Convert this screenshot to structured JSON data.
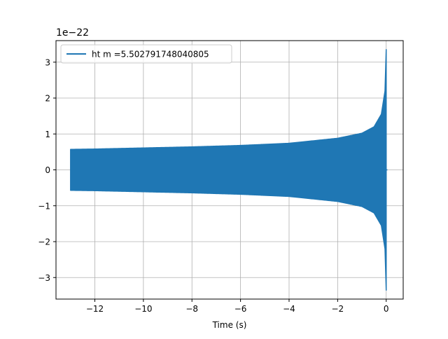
{
  "chart_data": {
    "type": "line",
    "title": "",
    "xlabel": "Time (s)",
    "ylabel": "",
    "offset_label": "1e−22",
    "xlim": [
      -13.6,
      0.7
    ],
    "ylim": [
      -3.6,
      3.6
    ],
    "xticks": [
      -12,
      -10,
      -8,
      -6,
      -4,
      -2,
      0
    ],
    "xtick_labels": [
      "−12",
      "−10",
      "−8",
      "−6",
      "−4",
      "−2",
      "0"
    ],
    "yticks": [
      -3,
      -2,
      -1,
      0,
      1,
      2,
      3
    ],
    "ytick_labels": [
      "−3",
      "−2",
      "−1",
      "0",
      "1",
      "2",
      "3"
    ],
    "grid": true,
    "legend_position": "upper left",
    "series": [
      {
        "name": "ht m =5.502791748040805",
        "color": "#1f77b4",
        "envelope": {
          "x": [
            -13.0,
            -12.0,
            -10.0,
            -8.0,
            -6.0,
            -4.0,
            -2.0,
            -1.0,
            -0.5,
            -0.2,
            -0.05,
            0.0
          ],
          "ymax": [
            0.57,
            0.58,
            0.61,
            0.64,
            0.68,
            0.74,
            0.88,
            1.02,
            1.2,
            1.55,
            2.2,
            3.35
          ],
          "ymin": [
            -0.57,
            -0.58,
            -0.61,
            -0.64,
            -0.68,
            -0.74,
            -0.88,
            -1.02,
            -1.2,
            -1.55,
            -2.2,
            -3.35
          ]
        }
      }
    ]
  }
}
